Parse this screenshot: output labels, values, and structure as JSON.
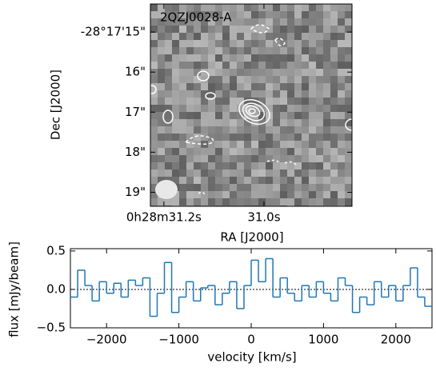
{
  "chart_data": [
    {
      "type": "image",
      "label": "2QZJ0028-A",
      "xlabel": "RA [J2000]",
      "ylabel": "Dec [J2000]",
      "xlim": [
        31.227,
        30.824
      ],
      "xticks": [
        {
          "value": 31.2,
          "label": "0h28m31.2s"
        },
        {
          "value": 31.0,
          "label": "31.0s"
        }
      ],
      "ylim": [
        19.35,
        14.3
      ],
      "yticks": [
        {
          "value": 15,
          "label": "-28°17'15\""
        },
        {
          "value": 16,
          "label": "16\""
        },
        {
          "value": 17,
          "label": "17\""
        },
        {
          "value": 18,
          "label": "18\""
        },
        {
          "value": 19,
          "label": "19\""
        }
      ]
    },
    {
      "type": "step",
      "xlabel": "velocity [km/s]",
      "ylabel": "flux [mJy/beam]",
      "color": "#1f77b4",
      "zero_line": true,
      "xlim": [
        -2500,
        2500
      ],
      "xticks": [
        {
          "value": -2000,
          "label": "−2000"
        },
        {
          "value": -1000,
          "label": "−1000"
        },
        0,
        1000,
        2000
      ],
      "ylim": [
        -0.5,
        0.53
      ],
      "yticks": [
        0.5,
        {
          "value": 0,
          "label": "0.0"
        },
        {
          "value": -0.5,
          "label": "−0.5"
        }
      ],
      "x": [
        -2450,
        -2350,
        -2250,
        -2150,
        -2050,
        -1950,
        -1850,
        -1750,
        -1650,
        -1550,
        -1450,
        -1350,
        -1250,
        -1150,
        -1050,
        -950,
        -850,
        -750,
        -650,
        -550,
        -450,
        -350,
        -250,
        -150,
        -50,
        50,
        150,
        250,
        350,
        450,
        550,
        650,
        750,
        850,
        950,
        1050,
        1150,
        1250,
        1350,
        1450,
        1550,
        1650,
        1750,
        1850,
        1950,
        2050,
        2150,
        2250,
        2350,
        2450
      ],
      "values": [
        -0.1,
        0.25,
        0.05,
        -0.15,
        0.1,
        -0.05,
        0.08,
        -0.1,
        0.12,
        0.05,
        0.15,
        -0.35,
        -0.05,
        0.35,
        -0.3,
        -0.1,
        0.1,
        -0.15,
        0.02,
        0.05,
        -0.2,
        -0.05,
        0.1,
        -0.25,
        0.05,
        0.38,
        0.1,
        0.4,
        -0.1,
        0.15,
        -0.05,
        -0.15,
        0.05,
        -0.1,
        0.1,
        -0.05,
        -0.15,
        0.15,
        0.05,
        -0.3,
        -0.1,
        -0.2,
        0.1,
        -0.1,
        0.05,
        -0.15,
        0.05,
        0.28,
        -0.1,
        -0.22
      ]
    }
  ]
}
